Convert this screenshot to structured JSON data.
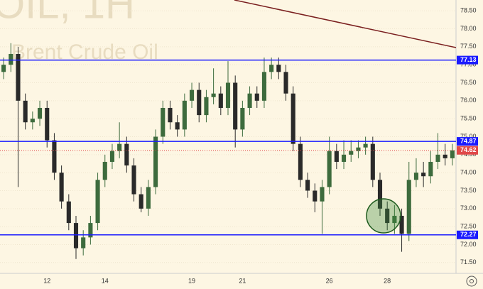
{
  "chart_data": {
    "type": "candlestick",
    "watermark": [
      "OIL, 1H",
      "Brent Crude Oil"
    ],
    "categories": [
      null,
      null,
      null,
      null,
      null,
      null,
      "12",
      null,
      null,
      null,
      null,
      null,
      null,
      null,
      "14",
      null,
      null,
      null,
      null,
      null,
      null,
      null,
      null,
      null,
      null,
      null,
      "19",
      null,
      null,
      null,
      null,
      null,
      null,
      "21",
      null,
      null,
      null,
      null,
      null,
      null,
      null,
      null,
      null,
      null,
      null,
      "26",
      null,
      null,
      null,
      null,
      null,
      null,
      null,
      "28",
      null,
      null,
      null,
      null,
      null,
      null,
      null,
      null,
      null
    ],
    "open": [
      76.8,
      77.0,
      77.3,
      76.0,
      75.4,
      75.5,
      75.8,
      74.9,
      74.0,
      73.2,
      72.6,
      71.9,
      72.2,
      72.6,
      73.8,
      74.3,
      74.6,
      74.8,
      74.2,
      73.4,
      73.0,
      73.6,
      75.0,
      75.8,
      75.4,
      75.2,
      76.0,
      76.3,
      75.6,
      76.1,
      76.2,
      75.8,
      76.5,
      75.2,
      75.8,
      76.2,
      76.0,
      76.8,
      77.0,
      76.8,
      76.2,
      74.8,
      73.8,
      73.5,
      73.2,
      73.6,
      74.6,
      74.3,
      74.5,
      74.6,
      74.7,
      74.8,
      73.8,
      73.0,
      72.6,
      72.8,
      72.3,
      73.8,
      74.0,
      73.9,
      74.3,
      74.5,
      74.4
    ],
    "high": [
      77.2,
      77.6,
      77.5,
      76.2,
      75.7,
      76.0,
      76.0,
      75.1,
      74.2,
      73.4,
      72.8,
      72.4,
      72.8,
      74.0,
      74.5,
      74.8,
      75.4,
      75.0,
      74.4,
      73.6,
      73.8,
      75.2,
      76.0,
      76.0,
      75.6,
      76.2,
      76.5,
      76.5,
      76.3,
      76.9,
      76.4,
      77.1,
      76.7,
      76.0,
      76.4,
      76.4,
      77.2,
      77.2,
      77.2,
      77.0,
      76.4,
      75.0,
      74.0,
      73.7,
      73.8,
      75.0,
      74.8,
      74.9,
      74.9,
      74.9,
      75.0,
      75.0,
      74.0,
      73.2,
      73.1,
      73.0,
      74.3,
      74.4,
      74.3,
      74.6,
      75.1,
      74.8,
      74.8
    ],
    "low": [
      76.6,
      76.8,
      73.6,
      75.2,
      75.2,
      75.3,
      74.7,
      73.8,
      73.0,
      72.4,
      71.6,
      71.7,
      72.0,
      72.4,
      73.6,
      74.1,
      74.4,
      74.0,
      73.2,
      72.9,
      72.8,
      73.4,
      74.8,
      75.2,
      75.0,
      75.0,
      75.8,
      75.4,
      75.4,
      75.9,
      75.6,
      75.6,
      74.7,
      75.0,
      75.6,
      75.8,
      75.8,
      76.6,
      76.6,
      76.0,
      74.6,
      73.6,
      73.3,
      72.9,
      72.3,
      73.4,
      74.1,
      74.1,
      74.3,
      74.4,
      74.5,
      73.6,
      72.8,
      72.4,
      72.3,
      71.8,
      72.1,
      73.6,
      73.6,
      73.7,
      74.1,
      74.2,
      74.2
    ],
    "close": [
      77.0,
      77.3,
      76.0,
      75.4,
      75.5,
      75.8,
      74.9,
      74.0,
      73.2,
      72.6,
      71.9,
      72.2,
      72.6,
      73.8,
      74.3,
      74.6,
      74.8,
      74.2,
      73.4,
      73.0,
      73.6,
      75.0,
      75.8,
      75.4,
      75.2,
      76.0,
      76.3,
      75.6,
      76.1,
      76.2,
      75.8,
      76.5,
      75.2,
      75.8,
      76.2,
      76.0,
      76.8,
      77.0,
      76.8,
      76.2,
      74.8,
      73.8,
      73.5,
      73.2,
      73.6,
      74.6,
      74.3,
      74.5,
      74.6,
      74.7,
      74.8,
      73.8,
      73.0,
      72.6,
      72.8,
      72.3,
      73.8,
      74.0,
      73.9,
      74.3,
      74.5,
      74.4,
      74.62
    ],
    "up_color": "#3d6b3d",
    "down_color": "#2a2a2a",
    "ylim": [
      71.2,
      78.8
    ],
    "yticks": [
      {
        "value": 71.5,
        "label": "71.50"
      },
      {
        "value": 72,
        "label": "72.00"
      },
      {
        "value": 72.5,
        "label": "72.50"
      },
      {
        "value": 73,
        "label": "73.00"
      },
      {
        "value": 73.5,
        "label": "73.50"
      },
      {
        "value": 74,
        "label": "74.00"
      },
      {
        "value": 74.5,
        "label": "74.50"
      },
      {
        "value": 75,
        "label": "75.00"
      },
      {
        "value": 75.5,
        "label": "75.50"
      },
      {
        "value": 76,
        "label": "76.00"
      },
      {
        "value": 76.5,
        "label": "76.50"
      },
      {
        "value": 77,
        "label": "77.00"
      },
      {
        "value": 77.5,
        "label": "77.50"
      },
      {
        "value": 78,
        "label": "78.00"
      },
      {
        "value": 78.5,
        "label": "78.50"
      }
    ],
    "levels": [
      77.13,
      74.87,
      72.27
    ],
    "level_color": "#1a1aff",
    "last_price": 74.62,
    "last_price_color": "#e04848"
  }
}
